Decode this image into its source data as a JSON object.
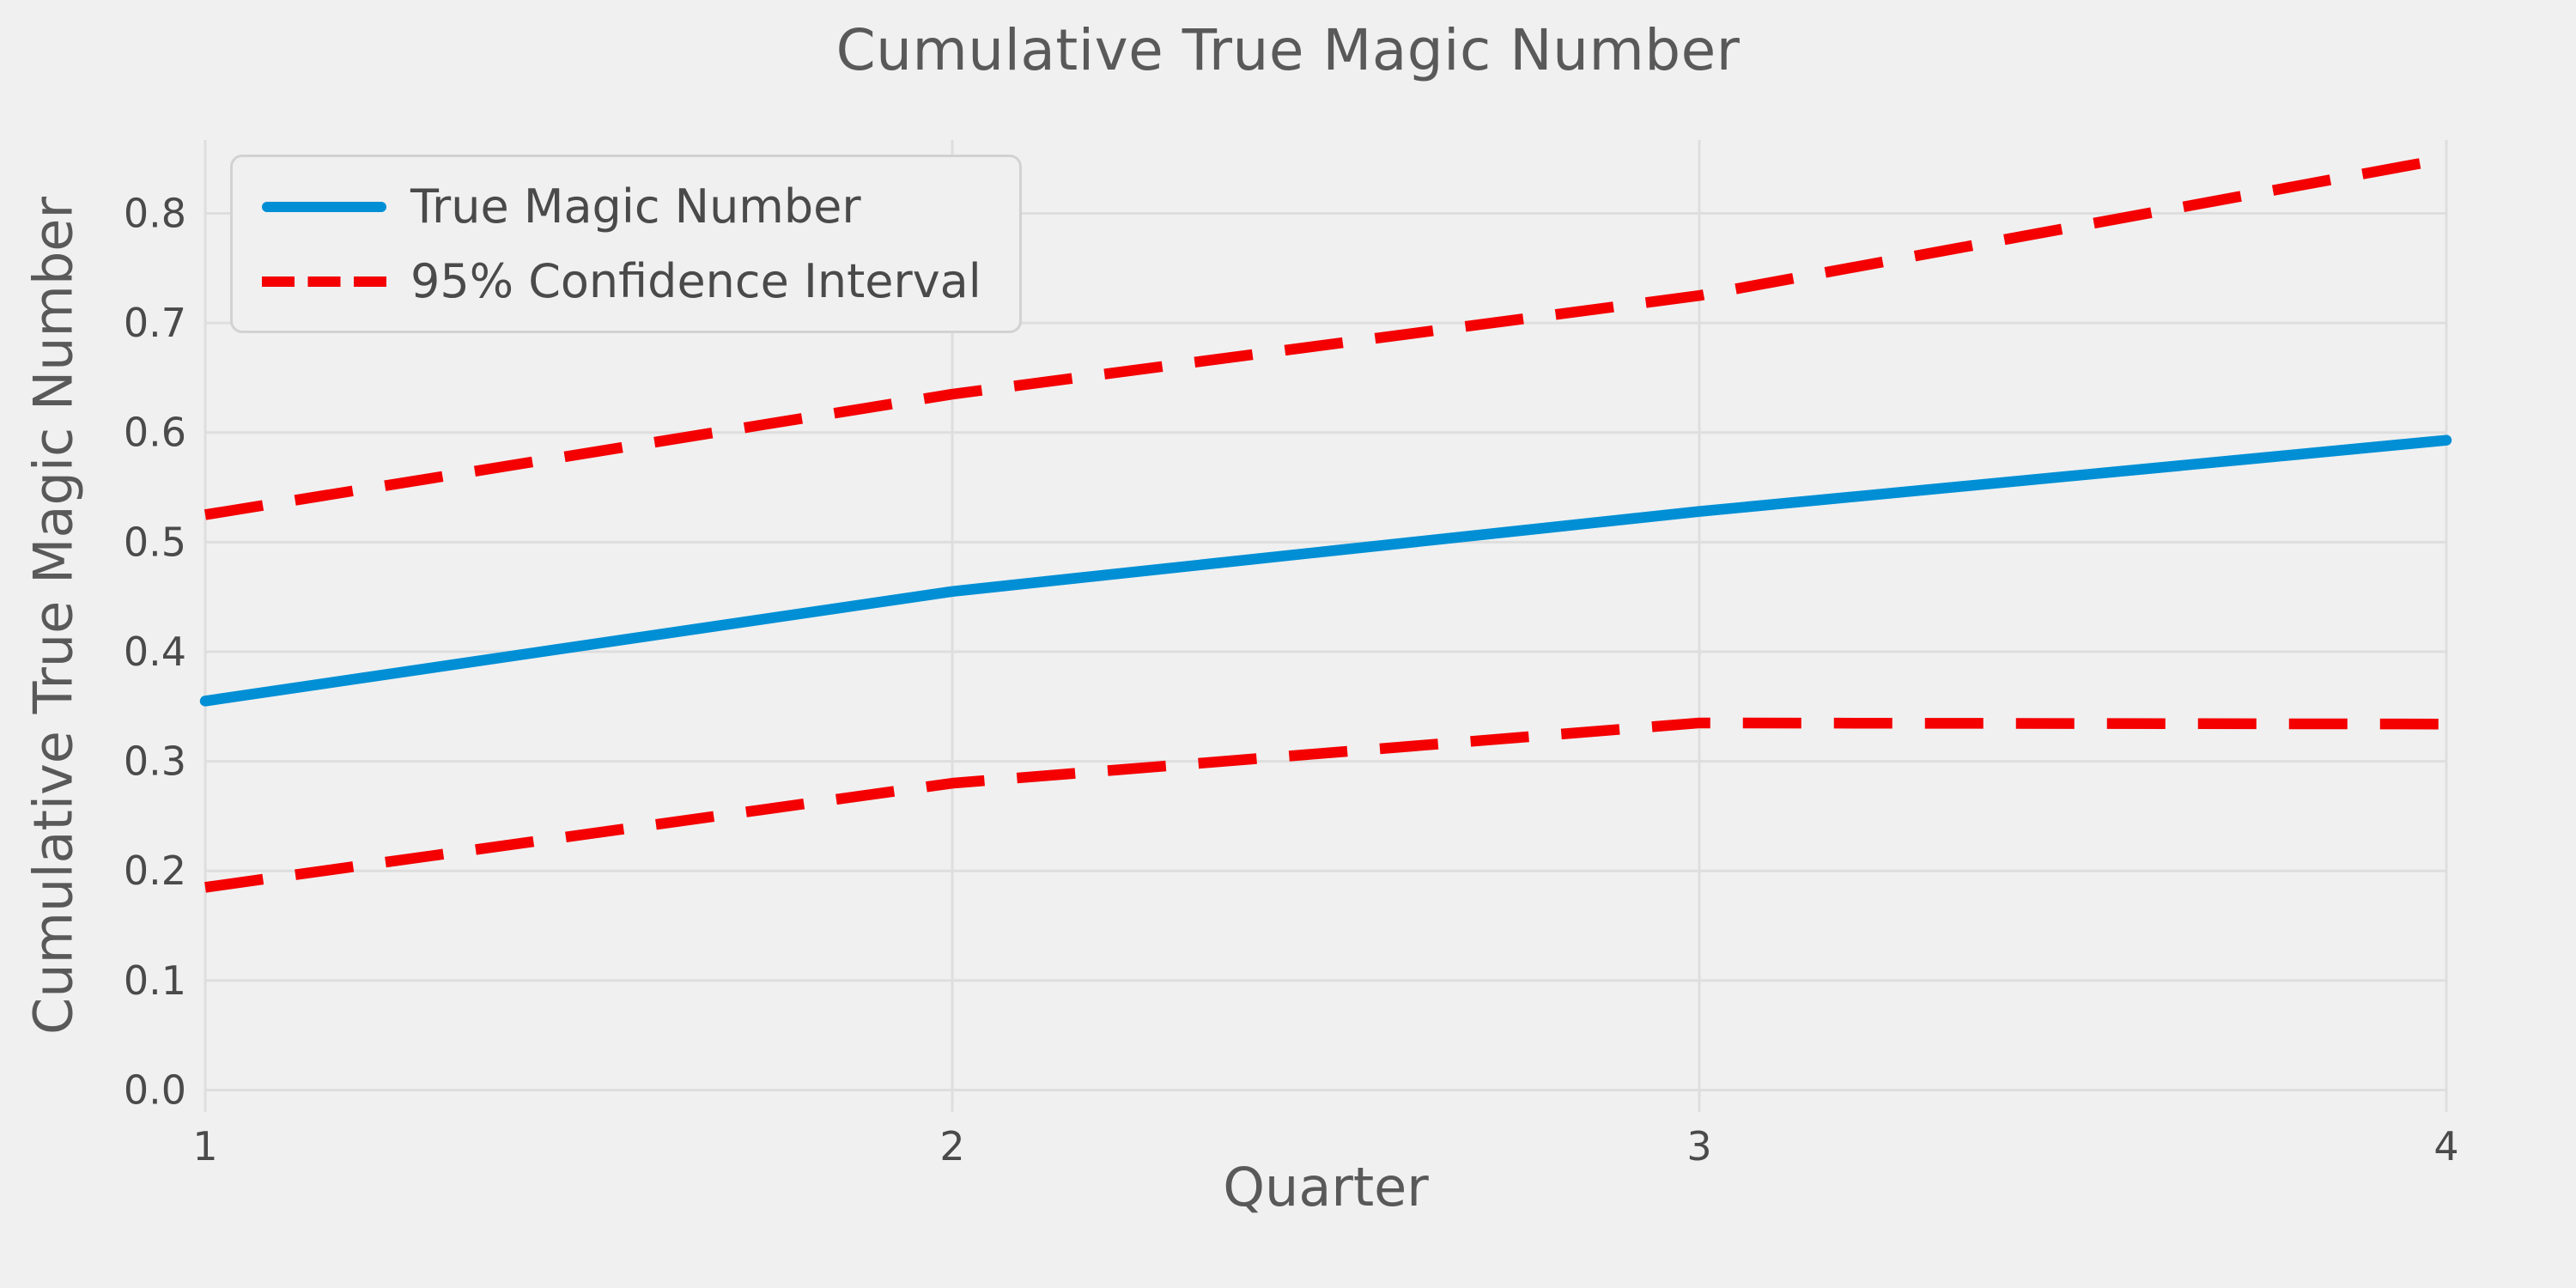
{
  "chart_data": {
    "type": "line",
    "title": "Cumulative True Magic Number",
    "xlabel": "Quarter",
    "ylabel": "Cumulative True Magic Number",
    "x": [
      1,
      2,
      3,
      4
    ],
    "series": [
      {
        "name": "True Magic Number",
        "style": "solid",
        "color_key": "blue",
        "values": [
          0.355,
          0.455,
          0.528,
          0.593
        ]
      },
      {
        "name": "95% Confidence Interval (upper)",
        "style": "dashed",
        "color_key": "red",
        "values": [
          0.525,
          0.635,
          0.725,
          0.85
        ]
      },
      {
        "name": "95% Confidence Interval (lower)",
        "style": "dashed",
        "color_key": "red",
        "values": [
          0.185,
          0.28,
          0.335,
          0.334
        ]
      }
    ],
    "legend": [
      {
        "label": "True Magic Number",
        "style": "solid",
        "color_key": "blue"
      },
      {
        "label": "95% Confidence Interval",
        "style": "dashed",
        "color_key": "red"
      }
    ],
    "legend_position": "upper left",
    "grid": true,
    "xlim": [
      1,
      4
    ],
    "ylim": [
      -0.02,
      0.867
    ],
    "xticks": [
      1,
      2,
      3,
      4
    ],
    "xtick_labels": [
      "1",
      "2",
      "3",
      "4"
    ],
    "yticks": [
      0,
      0.1,
      0.2,
      0.3,
      0.4,
      0.5,
      0.6,
      0.7,
      0.8
    ],
    "ytick_labels": [
      "0.0",
      "0.1",
      "0.2",
      "0.3",
      "0.4",
      "0.5",
      "0.6",
      "0.7",
      "0.8"
    ],
    "colors": {
      "blue": "#008fd5",
      "red": "#f40000",
      "background": "#f0f0f0",
      "grid": "#dedede",
      "title_text": "#595959",
      "tick_text": "#4a4a4a"
    }
  }
}
